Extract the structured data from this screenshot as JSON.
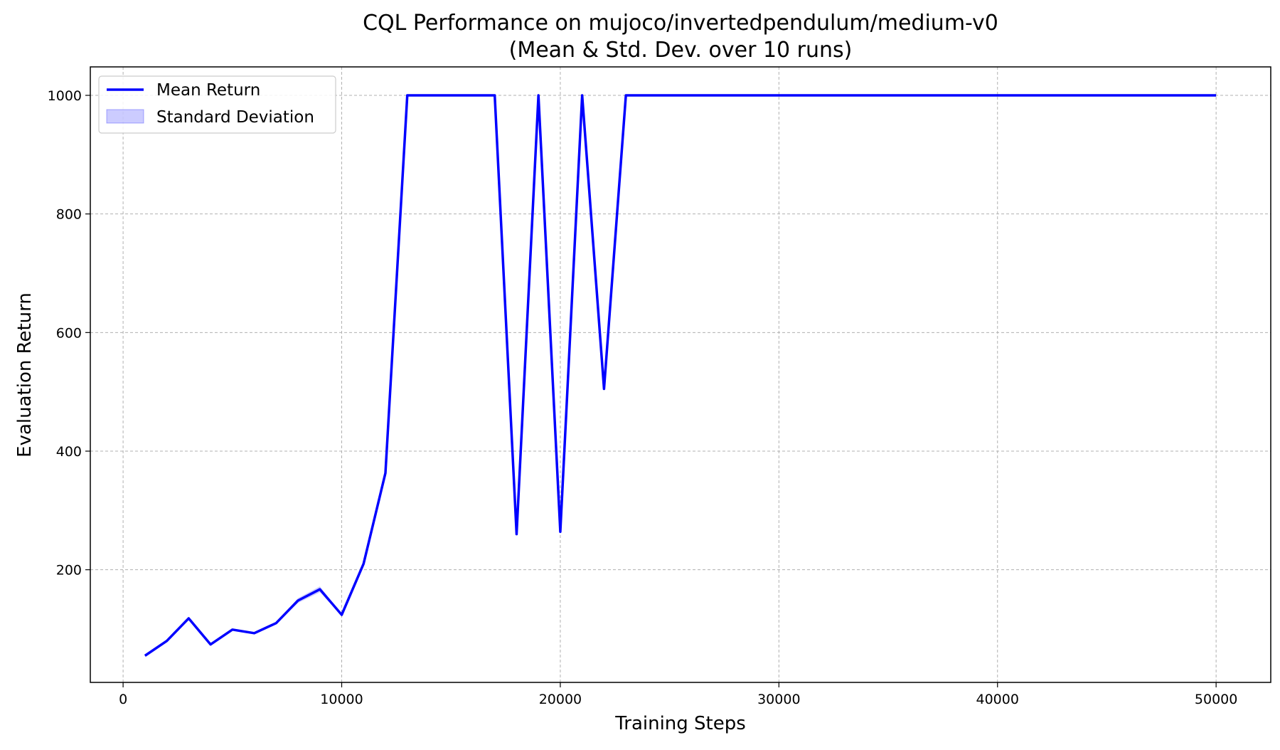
{
  "chart_data": {
    "type": "line",
    "title": "CQL Performance on mujoco/invertedpendulum/medium-v0",
    "subtitle": "(Mean & Std. Dev. over 10 runs)",
    "xlabel": "Training Steps",
    "ylabel": "Evaluation Return",
    "xlim": [
      -1500,
      52500
    ],
    "ylim": [
      10,
      1048
    ],
    "x_ticks": [
      0,
      10000,
      20000,
      30000,
      40000,
      50000
    ],
    "y_ticks": [
      200,
      400,
      600,
      800,
      1000
    ],
    "grid": true,
    "legend_position": "top-left",
    "x": [
      1000,
      2000,
      3000,
      4000,
      5000,
      6000,
      7000,
      8000,
      9000,
      10000,
      11000,
      12000,
      13000,
      14000,
      15000,
      16000,
      17000,
      18000,
      19000,
      20000,
      21000,
      22000,
      23000,
      24000,
      25000,
      26000,
      27000,
      28000,
      29000,
      30000,
      31000,
      32000,
      33000,
      34000,
      35000,
      36000,
      37000,
      38000,
      39000,
      40000,
      41000,
      42000,
      43000,
      44000,
      45000,
      46000,
      47000,
      48000,
      49000,
      50000
    ],
    "series": [
      {
        "name": "Mean Return",
        "color": "#0000ff",
        "values": [
          55,
          80,
          118,
          74,
          99,
          93,
          110,
          148,
          167,
          124,
          210,
          363,
          1000,
          1000,
          1000,
          1000,
          1000,
          260,
          1000,
          264,
          1000,
          505,
          1000,
          1000,
          1000,
          1000,
          1000,
          1000,
          1000,
          1000,
          1000,
          1000,
          1000,
          1000,
          1000,
          1000,
          1000,
          1000,
          1000,
          1000,
          1000,
          1000,
          1000,
          1000,
          1000,
          1000,
          1000,
          1000,
          1000,
          1000
        ]
      },
      {
        "name": "Standard Deviation",
        "color": "#0000ff",
        "fill_opacity": 0.2,
        "std": [
          1,
          1,
          1,
          1,
          1,
          1,
          1,
          4,
          5,
          1,
          1,
          1,
          0,
          0,
          0,
          0,
          0,
          1,
          0,
          1,
          0,
          1,
          0,
          0,
          0,
          0,
          0,
          0,
          0,
          0,
          0,
          0,
          0,
          0,
          0,
          0,
          0,
          0,
          0,
          0,
          0,
          0,
          0,
          0,
          0,
          0,
          0,
          0,
          0,
          0
        ]
      }
    ]
  }
}
